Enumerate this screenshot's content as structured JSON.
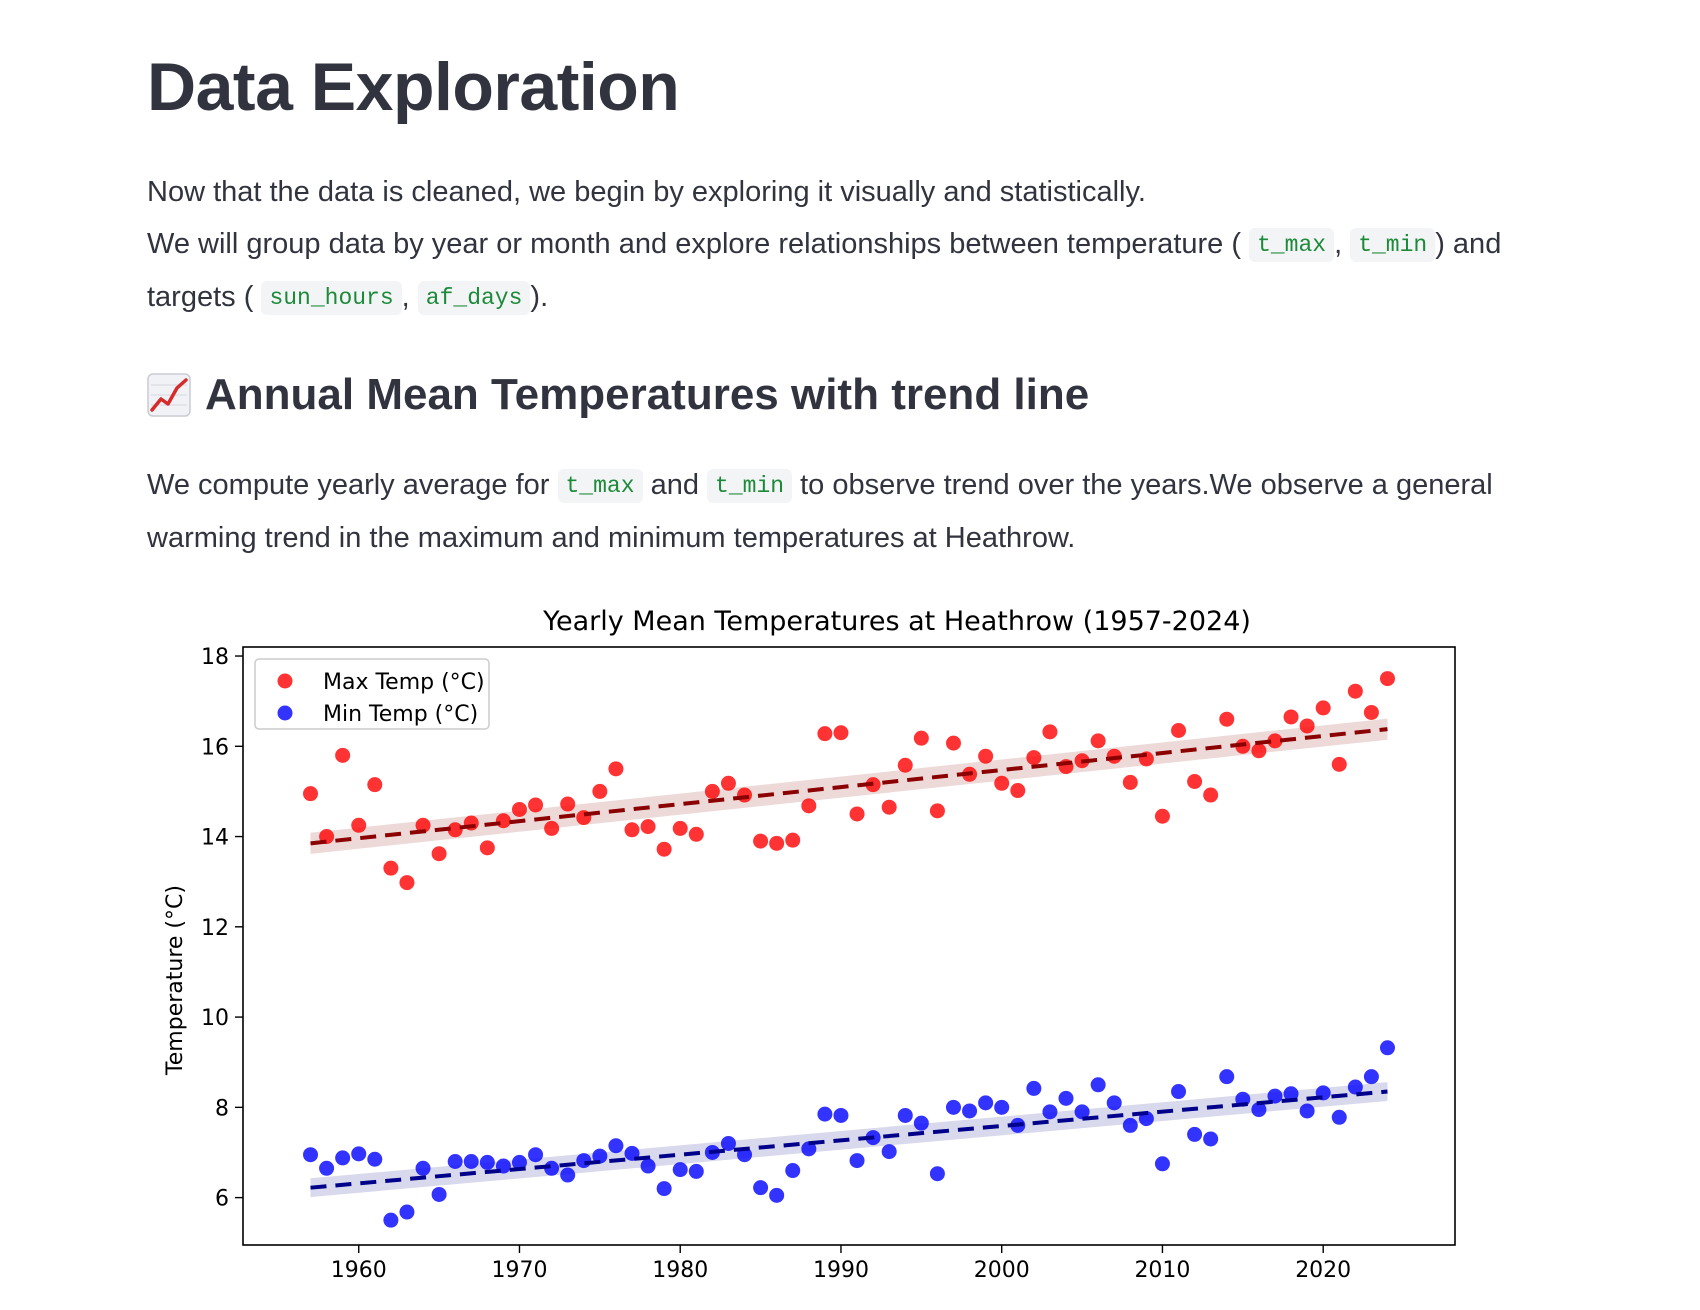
{
  "page": {
    "title": "Data Exploration",
    "intro": {
      "line1": "Now that the data is cleaned, we begin by exploring it visually and statistically.",
      "line2_a": "We will group data by year or month and explore relationships between temperature (",
      "code_tmax": "t_max",
      "sep": ",",
      "code_tmin": "t_min",
      "line2_b": ") and targets (",
      "code_sun": "sun_hours",
      "code_af": "af_days",
      "line2_c": ")."
    },
    "section": {
      "emoji_icon": "chart-increasing-icon",
      "title": "Annual Mean Temperatures with trend line",
      "text_a": "We compute yearly average for",
      "code_tmax": "t_max",
      "and": "and",
      "code_tmin": "t_min",
      "text_b": "to observe trend over the years.We observe a general warming trend in the maximum and minimum temperatures at Heathrow."
    }
  },
  "chart_data": {
    "type": "scatter",
    "title": "Yearly Mean Temperatures at Heathrow (1957-2024)",
    "xlabel": "",
    "ylabel": "Temperature (°C)",
    "xlim": [
      1952.8,
      2028.2
    ],
    "ylim": [
      4.95,
      18.2
    ],
    "xticks": [
      1960,
      1970,
      1980,
      1990,
      2000,
      2010,
      2020
    ],
    "yticks": [
      6,
      8,
      10,
      12,
      14,
      16,
      18
    ],
    "legend_position": "top-left",
    "grid": false,
    "x": [
      1957,
      1958,
      1959,
      1960,
      1961,
      1962,
      1963,
      1964,
      1965,
      1966,
      1967,
      1968,
      1969,
      1970,
      1971,
      1972,
      1973,
      1974,
      1975,
      1976,
      1977,
      1978,
      1979,
      1980,
      1981,
      1982,
      1983,
      1984,
      1985,
      1986,
      1987,
      1988,
      1989,
      1990,
      1991,
      1992,
      1993,
      1994,
      1995,
      1996,
      1997,
      1998,
      1999,
      2000,
      2001,
      2002,
      2003,
      2004,
      2005,
      2006,
      2007,
      2008,
      2009,
      2010,
      2011,
      2012,
      2013,
      2014,
      2015,
      2016,
      2017,
      2018,
      2019,
      2020,
      2021,
      2022,
      2023,
      2024
    ],
    "series": [
      {
        "name": "Max Temp (°C)",
        "color": "#ff0000",
        "values": [
          14.95,
          14.0,
          15.8,
          14.25,
          15.15,
          13.3,
          12.98,
          14.25,
          13.62,
          14.15,
          14.3,
          13.75,
          14.35,
          14.6,
          14.7,
          14.18,
          14.72,
          14.42,
          15.0,
          15.5,
          14.15,
          14.22,
          13.72,
          14.18,
          14.05,
          15.0,
          15.18,
          14.92,
          13.9,
          13.85,
          13.92,
          14.68,
          16.28,
          16.3,
          14.5,
          15.15,
          14.65,
          15.58,
          16.18,
          14.57,
          16.07,
          15.38,
          15.78,
          15.18,
          15.02,
          15.75,
          16.32,
          15.55,
          15.68,
          16.12,
          15.78,
          15.2,
          15.72,
          14.45,
          16.35,
          15.22,
          14.92,
          16.6,
          16.0,
          15.9,
          16.12,
          16.65,
          16.45,
          16.85,
          15.6,
          17.22,
          16.75,
          17.5
        ],
        "trend": {
          "color": "#8b0000",
          "y_start": 13.85,
          "y_end": 16.38,
          "band": 0.18
        }
      },
      {
        "name": "Min Temp (°C)",
        "color": "#0000ff",
        "values": [
          6.95,
          6.65,
          6.88,
          6.97,
          6.85,
          5.5,
          5.68,
          6.65,
          6.07,
          6.8,
          6.8,
          6.78,
          6.7,
          6.78,
          6.95,
          6.65,
          6.5,
          6.82,
          6.92,
          7.15,
          6.98,
          6.7,
          6.2,
          6.62,
          6.58,
          7.0,
          7.2,
          6.95,
          6.22,
          6.05,
          6.6,
          7.08,
          7.85,
          7.82,
          6.82,
          7.33,
          7.02,
          7.82,
          7.65,
          6.53,
          8.0,
          7.92,
          8.1,
          8.0,
          7.6,
          8.42,
          7.9,
          8.2,
          7.9,
          8.5,
          8.1,
          7.6,
          7.75,
          6.75,
          8.35,
          7.4,
          7.3,
          8.68,
          8.18,
          7.95,
          8.25,
          8.3,
          7.92,
          8.32,
          7.78,
          8.45,
          8.68,
          9.32
        ],
        "trend": {
          "color": "#00008b",
          "y_start": 6.22,
          "y_end": 8.35,
          "band": 0.16
        }
      }
    ]
  }
}
